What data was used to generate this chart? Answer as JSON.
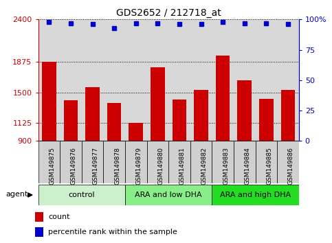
{
  "title": "GDS2652 / 212718_at",
  "categories": [
    "GSM149875",
    "GSM149876",
    "GSM149877",
    "GSM149878",
    "GSM149879",
    "GSM149880",
    "GSM149881",
    "GSM149882",
    "GSM149883",
    "GSM149884",
    "GSM149885",
    "GSM149886"
  ],
  "bar_values": [
    1875,
    1400,
    1560,
    1370,
    1125,
    1810,
    1415,
    1530,
    1950,
    1650,
    1420,
    1530
  ],
  "percentile_values": [
    98,
    97,
    96,
    93,
    97,
    97,
    96,
    96,
    98,
    97,
    97,
    96
  ],
  "bar_color": "#cc0000",
  "percentile_color": "#0000cc",
  "ylim_left": [
    900,
    2400
  ],
  "ylim_right": [
    0,
    100
  ],
  "yticks_left": [
    900,
    1125,
    1500,
    1875,
    2400
  ],
  "ytick_labels_left": [
    "900",
    "1125",
    "1500",
    "1875",
    "2400"
  ],
  "yticks_right": [
    0,
    25,
    50,
    75,
    100
  ],
  "ytick_labels_right": [
    "0",
    "25",
    "50",
    "75",
    "100%"
  ],
  "groups": [
    {
      "label": "control",
      "start": 0,
      "end": 4,
      "color": "#ccf0cc"
    },
    {
      "label": "ARA and low DHA",
      "start": 4,
      "end": 8,
      "color": "#88ee88"
    },
    {
      "label": "ARA and high DHA",
      "start": 8,
      "end": 12,
      "color": "#22dd22"
    }
  ],
  "agent_label": "agent",
  "legend_items": [
    {
      "label": "count",
      "color": "#cc0000"
    },
    {
      "label": "percentile rank within the sample",
      "color": "#0000cc"
    }
  ],
  "bg_color": "#ffffff",
  "plot_bg_color": "#d8d8d8",
  "tick_bg_color": "#d0d0d0",
  "dotted_line_color": "#000000",
  "fig_width": 4.83,
  "fig_height": 3.54,
  "dpi": 100
}
